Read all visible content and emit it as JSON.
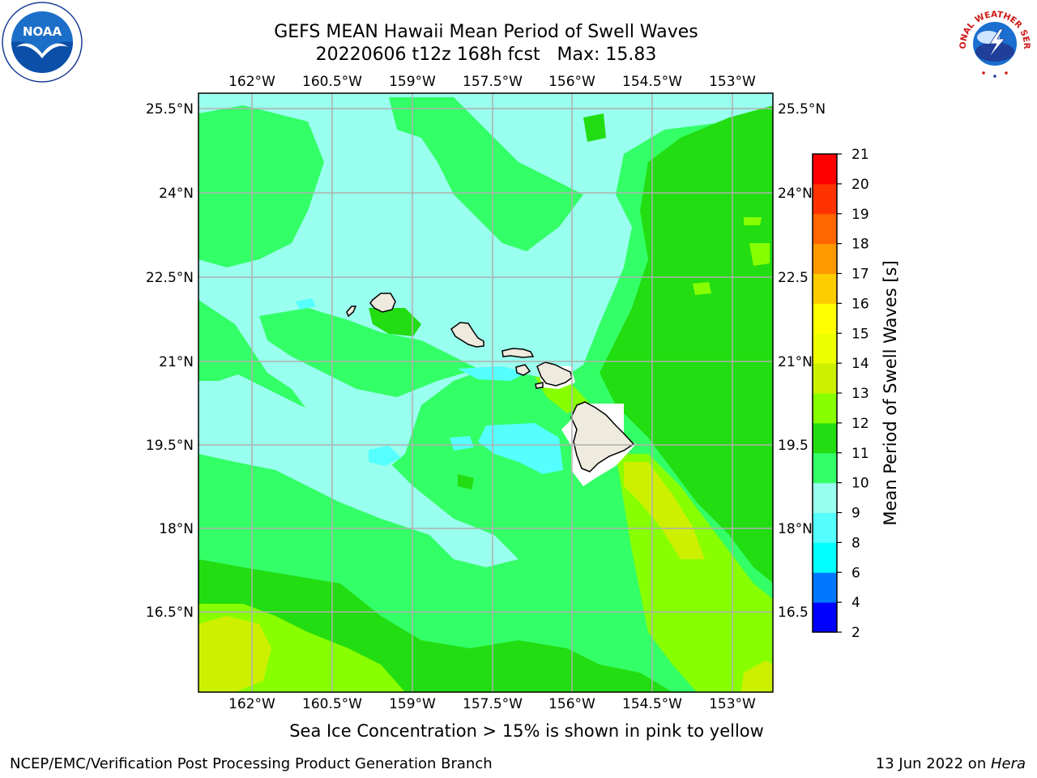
{
  "header": {
    "title_line1": "GEFS MEAN Hawaii Mean Period of Swell Waves",
    "title_line2": "20220606 t12z 168h fcst   Max: 15.83"
  },
  "logos": {
    "left": "noaa-logo",
    "left_text": "NOAA",
    "right": "nws-logo",
    "right_text": "NATIONAL WEATHER SERVICE"
  },
  "map": {
    "lon_ticks": [
      "162°W",
      "160.5°W",
      "159°W",
      "157.5°W",
      "156°W",
      "154.5°W",
      "153°W"
    ],
    "lat_ticks_left": [
      "25.5°N",
      "24°N",
      "22.5°N",
      "21°N",
      "19.5°N",
      "18°N",
      "16.5°N"
    ],
    "lat_ticks_right": [
      "25.5°N",
      "24°N",
      "22.5",
      "21°N",
      "19.5",
      "18°N",
      "16.5"
    ],
    "lon_range": [
      "163°W",
      "152.3°W"
    ],
    "lat_range": [
      "15°N",
      "25.7°N"
    ],
    "grid": true,
    "gridline_color": "#b0b0b0",
    "land_color": "#eeeade"
  },
  "colorbar": {
    "label": "Mean Period of Swell Waves [s]",
    "ticks": [
      "2",
      "4",
      "6",
      "8",
      "9",
      "10",
      "11",
      "12",
      "13",
      "14",
      "15",
      "16",
      "17",
      "18",
      "19",
      "20",
      "21"
    ],
    "colors": [
      "#0000ff",
      "#0077ff",
      "#00ffff",
      "#55ffff",
      "#99ffee",
      "#33ff66",
      "#22dd11",
      "#88ff00",
      "#ccf000",
      "#eeff00",
      "#ffff00",
      "#ffcc00",
      "#ff9900",
      "#ff6600",
      "#ff3300",
      "#ff0000"
    ]
  },
  "subtitle": "Sea Ice Concentration > 15% is shown in pink to yellow",
  "footer": {
    "left": "NCEP/EMC/Verification Post Processing Product Generation Branch",
    "right_date": "13 Jun 2022 on ",
    "right_host": "Hera"
  }
}
